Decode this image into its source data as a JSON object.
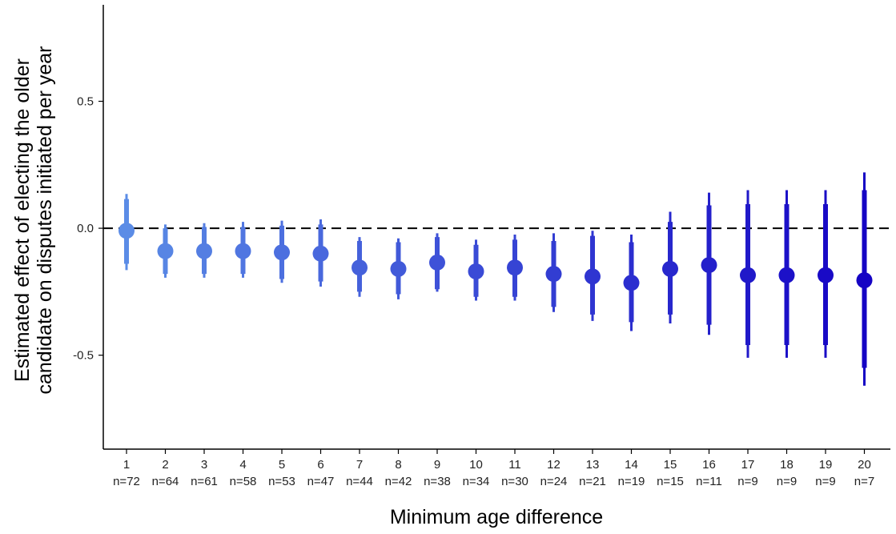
{
  "chart_data": {
    "type": "scatter",
    "title": "",
    "xlabel": "Minimum age difference",
    "ylabel": "Estimated effect of electing the older candidate on disputes initiated per year",
    "ylabel_lines": [
      "Estimated effect of electing the older",
      "candidate on disputes initiated per year"
    ],
    "ylim": [
      -0.87,
      0.88
    ],
    "yticks": [
      0.5,
      0.0,
      -0.5
    ],
    "ytick_labels": [
      "0.5",
      "0.0",
      "-0.5"
    ],
    "reference_line": 0.0,
    "grid": false,
    "categories": [
      "1",
      "2",
      "3",
      "4",
      "5",
      "6",
      "7",
      "8",
      "9",
      "10",
      "11",
      "12",
      "13",
      "14",
      "15",
      "16",
      "17",
      "18",
      "19",
      "20"
    ],
    "n_labels": [
      "n=72",
      "n=64",
      "n=61",
      "n=58",
      "n=53",
      "n=47",
      "n=44",
      "n=42",
      "n=38",
      "n=34",
      "n=30",
      "n=24",
      "n=21",
      "n=19",
      "n=15",
      "n=11",
      "n=9",
      "n=9",
      "n=9",
      "n=7"
    ],
    "estimates": [
      -0.01,
      -0.09,
      -0.09,
      -0.09,
      -0.095,
      -0.1,
      -0.155,
      -0.16,
      -0.135,
      -0.17,
      -0.155,
      -0.18,
      -0.19,
      -0.215,
      -0.16,
      -0.145,
      -0.185,
      -0.185,
      -0.185,
      -0.205
    ],
    "ci90_low": [
      -0.14,
      -0.18,
      -0.18,
      -0.18,
      -0.2,
      -0.21,
      -0.25,
      -0.26,
      -0.24,
      -0.27,
      -0.27,
      -0.31,
      -0.34,
      -0.37,
      -0.34,
      -0.38,
      -0.46,
      -0.46,
      -0.46,
      -0.55
    ],
    "ci90_high": [
      0.115,
      0.0,
      0.005,
      0.005,
      0.01,
      0.015,
      -0.05,
      -0.055,
      -0.035,
      -0.065,
      -0.045,
      -0.05,
      -0.03,
      -0.055,
      0.025,
      0.09,
      0.095,
      0.095,
      0.095,
      0.15
    ],
    "ci95_low": [
      -0.165,
      -0.195,
      -0.195,
      -0.195,
      -0.215,
      -0.23,
      -0.27,
      -0.28,
      -0.25,
      -0.285,
      -0.285,
      -0.33,
      -0.365,
      -0.405,
      -0.375,
      -0.42,
      -0.51,
      -0.51,
      -0.51,
      -0.62
    ],
    "ci95_high": [
      0.135,
      0.015,
      0.02,
      0.025,
      0.03,
      0.035,
      -0.035,
      -0.04,
      -0.02,
      -0.045,
      -0.025,
      -0.02,
      -0.01,
      -0.025,
      0.065,
      0.14,
      0.15,
      0.15,
      0.15,
      0.22
    ],
    "colors": {
      "start": "#5b8ce6",
      "end": "#1503c4",
      "axis": "#000000",
      "reference_line": "#000000"
    }
  }
}
